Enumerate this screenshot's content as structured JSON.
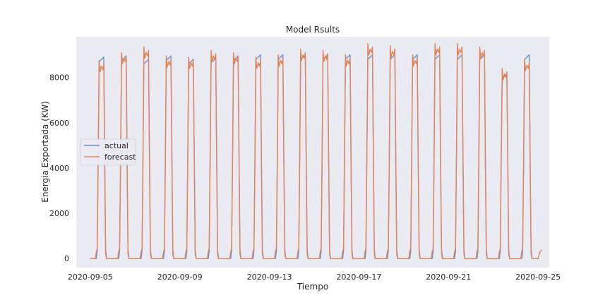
{
  "chart_data": {
    "type": "line",
    "title": "Model Rsults",
    "xlabel": "Tiempo",
    "ylabel": "Energia Exportada (KW)",
    "x_range": [
      "2020-09-04T09:00",
      "2020-09-25T12:00"
    ],
    "ylim": [
      -400,
      9800
    ],
    "x_ticks": [
      "2020-09-05",
      "2020-09-09",
      "2020-09-13",
      "2020-09-17",
      "2020-09-21",
      "2020-09-25"
    ],
    "y_ticks": [
      0,
      2000,
      4000,
      6000,
      8000
    ],
    "grid": false,
    "legend_position": "center-left",
    "start_date": "2020-09-05",
    "days": 20,
    "series": [
      {
        "name": "actual",
        "color": "#6b8fc9",
        "daily_peaks": [
          8900,
          8950,
          8800,
          8950,
          8800,
          8850,
          8950,
          9000,
          9000,
          9000,
          9000,
          9000,
          9000,
          9000,
          9000,
          9000,
          9000,
          9000,
          8150,
          9000
        ],
        "night_value": 0
      },
      {
        "name": "forecast",
        "color": "#e0845b",
        "daily_peaks": [
          8750,
          9100,
          9350,
          8950,
          8900,
          9200,
          9100,
          8900,
          9000,
          9250,
          9200,
          9000,
          9500,
          9400,
          9000,
          9500,
          9500,
          9350,
          8400,
          8800
        ],
        "night_value": 300
      }
    ]
  },
  "legend": {
    "items": [
      {
        "label": "actual",
        "color": "#6b8fc9"
      },
      {
        "label": "forecast",
        "color": "#e0845b"
      }
    ]
  }
}
